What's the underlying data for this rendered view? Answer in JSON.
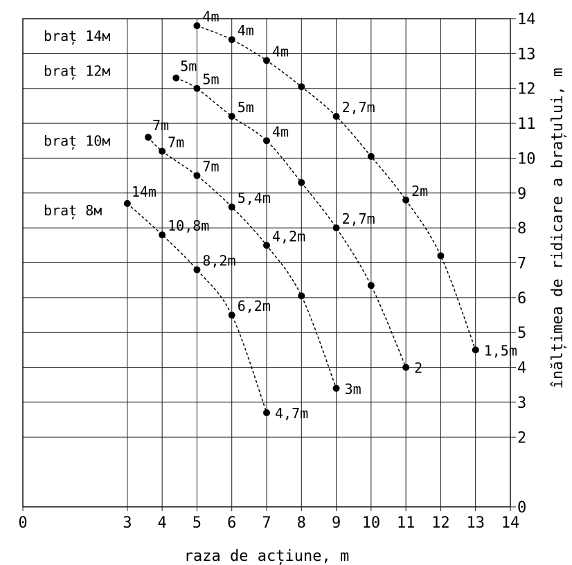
{
  "chart_data": {
    "type": "scatter",
    "xlabel": "raza de acțiune, m",
    "ylabel": "înălțimea de ridicare a brațului, m",
    "xlim": [
      0,
      14
    ],
    "ylim": [
      0,
      14
    ],
    "x_ticks": [
      0,
      3,
      4,
      5,
      6,
      7,
      8,
      9,
      10,
      11,
      12,
      13,
      14
    ],
    "y_ticks": [
      0,
      2,
      3,
      4,
      5,
      6,
      7,
      8,
      9,
      10,
      11,
      12,
      13,
      14
    ],
    "grid": true,
    "series": [
      {
        "name": "braț 14м",
        "points": [
          {
            "x": 5,
            "y": 13.8,
            "label": "4m"
          },
          {
            "x": 6,
            "y": 13.4,
            "label": "4m"
          },
          {
            "x": 7,
            "y": 12.8,
            "label": "4m"
          },
          {
            "x": 8,
            "y": 12.05,
            "label": ""
          },
          {
            "x": 9,
            "y": 11.2,
            "label": "2,7m"
          },
          {
            "x": 10,
            "y": 10.05,
            "label": ""
          },
          {
            "x": 11,
            "y": 8.8,
            "label": "2m"
          },
          {
            "x": 12,
            "y": 7.2,
            "label": ""
          },
          {
            "x": 13,
            "y": 4.5,
            "label": "1,5m"
          }
        ]
      },
      {
        "name": "braț 12м",
        "points": [
          {
            "x": 4.4,
            "y": 12.3,
            "label": "5m"
          },
          {
            "x": 5,
            "y": 12.0,
            "label": "5m"
          },
          {
            "x": 6,
            "y": 11.2,
            "label": "5m"
          },
          {
            "x": 7,
            "y": 10.5,
            "label": "4m"
          },
          {
            "x": 8,
            "y": 9.3,
            "label": ""
          },
          {
            "x": 9,
            "y": 8.0,
            "label": "2,7m"
          },
          {
            "x": 10,
            "y": 6.35,
            "label": ""
          },
          {
            "x": 11,
            "y": 4.0,
            "label": "2"
          }
        ]
      },
      {
        "name": "braț 10м",
        "points": [
          {
            "x": 3.6,
            "y": 10.6,
            "label": "7m"
          },
          {
            "x": 4,
            "y": 10.2,
            "label": "7m"
          },
          {
            "x": 5,
            "y": 9.5,
            "label": "7m"
          },
          {
            "x": 6,
            "y": 8.6,
            "label": "5,4m"
          },
          {
            "x": 7,
            "y": 7.5,
            "label": "4,2m"
          },
          {
            "x": 8,
            "y": 6.05,
            "label": ""
          },
          {
            "x": 9,
            "y": 3.4,
            "label": "3m"
          }
        ]
      },
      {
        "name": "braț 8м",
        "points": [
          {
            "x": 3,
            "y": 8.7,
            "label": "14m"
          },
          {
            "x": 4,
            "y": 7.8,
            "label": "10,8m"
          },
          {
            "x": 5,
            "y": 6.8,
            "label": "8,2m"
          },
          {
            "x": 6,
            "y": 5.5,
            "label": "6,2m"
          },
          {
            "x": 7,
            "y": 2.7,
            "label": "4,7m"
          }
        ]
      }
    ],
    "row_labels": [
      {
        "text": "braț 14м",
        "y": 13.5
      },
      {
        "text": "braț 12м",
        "y": 12.5
      },
      {
        "text": "braț 10м",
        "y": 10.5
      },
      {
        "text": "braț 8м",
        "y": 8.5
      }
    ]
  }
}
